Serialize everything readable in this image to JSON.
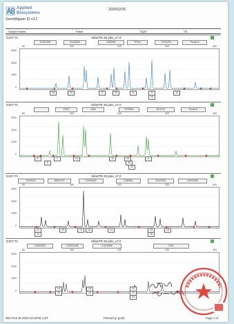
{
  "header": {
    "brand": {
      "line1": "Applied",
      "line2": "Biosystems"
    },
    "software": "GeneMapper ID v3.2",
    "date": "2020/02/26"
  },
  "sample_header": {
    "columns": [
      "Sample Name",
      "Panel",
      "SQO",
      "SS"
    ]
  },
  "panels": [
    {
      "label": "GIST-T1",
      "kit": "SifaSTR 20 plex_v7.0",
      "scale": [
        "80",
        "160",
        "240",
        "320",
        "400"
      ],
      "yaxis": [
        "4500",
        "3000",
        "1500",
        "0"
      ],
      "trace_color": "#3a7fc1",
      "markers": [
        "D2S1338",
        "D16S539",
        "D5S818",
        "TPOX",
        "CSF1PO",
        "Penta D"
      ],
      "alleles": [
        "15",
        "19",
        "17",
        "20",
        "11",
        "9",
        "10",
        "11"
      ]
    },
    {
      "label": "GIST-T1",
      "kit": "SifaSTR 20 plex_v7.0",
      "scale": [
        "80",
        "160",
        "240",
        "320",
        "400"
      ],
      "yaxis": [
        "3000",
        "2000",
        "1000",
        "0"
      ],
      "trace_color": "#34a43a",
      "markers": [
        "",
        "TH01",
        "vWA",
        "D7S820",
        "D21S11",
        "Penta E"
      ],
      "alleles": [
        "X",
        "9",
        "7",
        "14",
        "11",
        "29",
        "30",
        "5",
        "31"
      ]
    },
    {
      "label": "GIST-T1",
      "kit": "SifaSTR 20 plex_v7.0",
      "scale": [
        "80",
        "160",
        "240",
        "320",
        "400"
      ],
      "yaxis": [
        "3000",
        "2000",
        "1000",
        "0"
      ],
      "trace_color": "#222222",
      "markers": [
        "D13S317",
        "D8S1179",
        "D19S433",
        "D18S51",
        "D12S391",
        "D3S1358"
      ],
      "alleles": [
        "12",
        "14",
        "15",
        "13",
        "16",
        "14",
        "15",
        "16",
        "18"
      ]
    },
    {
      "label": "GIST-T1",
      "kit": "SifaSTR 20 plex_v7.0",
      "scale": [
        "80",
        "160",
        "240",
        "320",
        "400"
      ],
      "yaxis": [
        "3000",
        "2000",
        "1000",
        "0"
      ],
      "trace_color": "#444444",
      "markers": [
        "D16S433",
        "D10S1248",
        "D1S1656",
        "FGA"
      ],
      "alleles": [
        "14",
        "15",
        "15",
        "16",
        "21",
        "22",
        "23"
      ]
    }
  ],
  "stamp_color": "#e0443c",
  "footer": {
    "left": "Wed Feb 26 2020 04:43PM, CST",
    "middle": "Printed by: gmid",
    "right": "Page 1 of"
  }
}
